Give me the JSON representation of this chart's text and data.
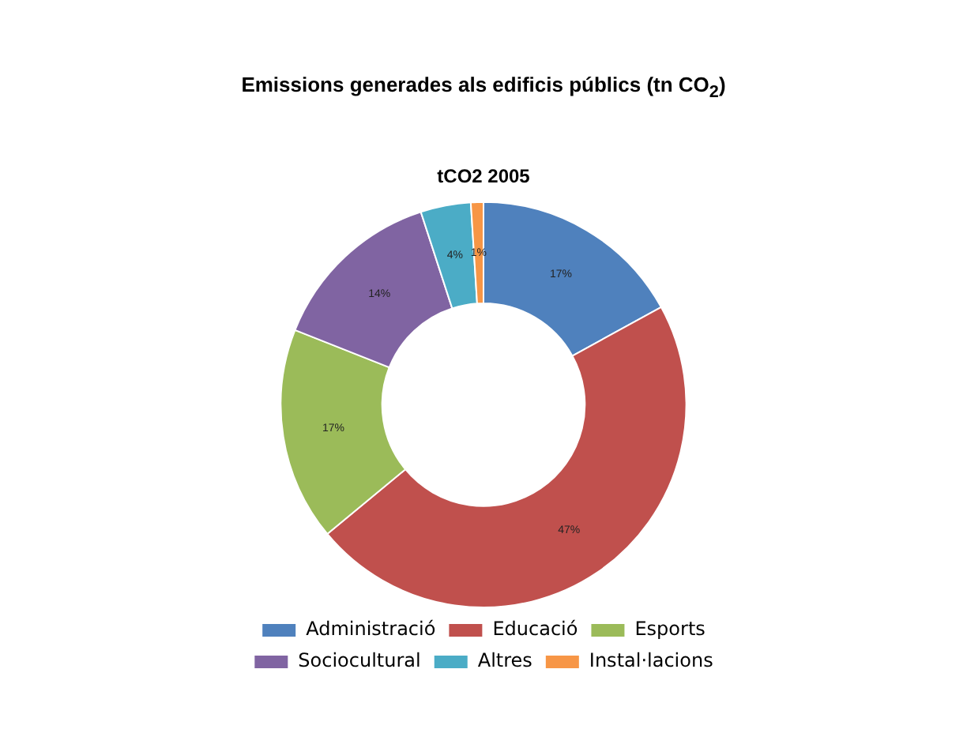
{
  "chart_data": {
    "type": "donut",
    "title": "Emissions generades als edificis públics (tn CO$_{2}$)",
    "subtitle": "tCO2 2005",
    "categories": [
      "Administració",
      "Educació",
      "Esports",
      "Sociocultural",
      "Altres",
      "Instal·lacions"
    ],
    "values": [
      17,
      47,
      17,
      14,
      4,
      1
    ],
    "value_labels": [
      "17%",
      "47%",
      "17%",
      "14%",
      "4%",
      "1%"
    ],
    "colors": [
      "#4f81bd",
      "#c0504d",
      "#9bbb59",
      "#8064a2",
      "#4bacc6",
      "#f79646"
    ],
    "legend": "bottom"
  }
}
